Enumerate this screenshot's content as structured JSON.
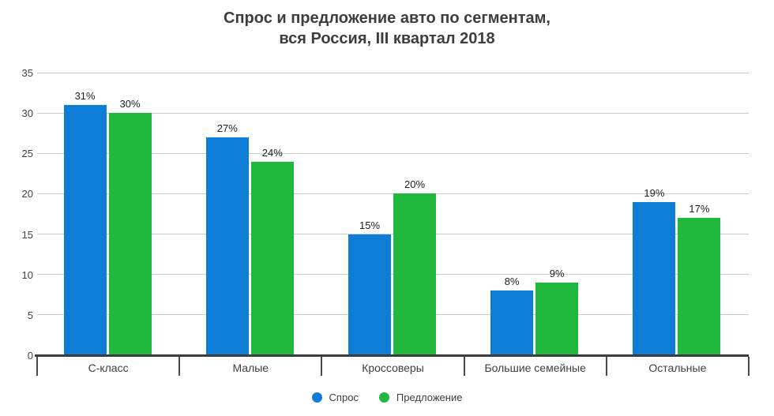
{
  "title": {
    "lines": [
      "Спрос и предложение авто по сегментам,",
      "вся Россия, III квартал 2018"
    ]
  },
  "chart_data": {
    "type": "bar",
    "title": "Спрос и предложение авто по сегментам, вся Россия, III квартал 2018",
    "categories": [
      "С-класс",
      "Малые",
      "Кроссоверы",
      "Большие семейные",
      "Остальные"
    ],
    "series": [
      {
        "name": "Спрос",
        "color": "#0e7dd8",
        "values": [
          31,
          27,
          15,
          8,
          19
        ]
      },
      {
        "name": "Предложение",
        "color": "#22b83e",
        "values": [
          30,
          24,
          20,
          9,
          17
        ]
      }
    ],
    "value_suffix": "%",
    "value_labels": [
      [
        "31%",
        "27%",
        "15%",
        "8%",
        "19%"
      ],
      [
        "30%",
        "24%",
        "20%",
        "9%",
        "17%"
      ]
    ],
    "xlabel": "",
    "ylabel": "",
    "ylim": [
      0,
      35
    ],
    "yticks": [
      0,
      5,
      10,
      15,
      20,
      25,
      30,
      35
    ],
    "grid": true,
    "legend_position": "bottom"
  },
  "colors": {
    "background": "#ffffff",
    "gridline": "#cccccc",
    "axis_line": "#3d3d3d",
    "tick": "#4a4a4a",
    "title_text": "#3d3d3d",
    "axis_text": "#424242",
    "category_text": "#3c4043",
    "value_text": "#202124"
  }
}
